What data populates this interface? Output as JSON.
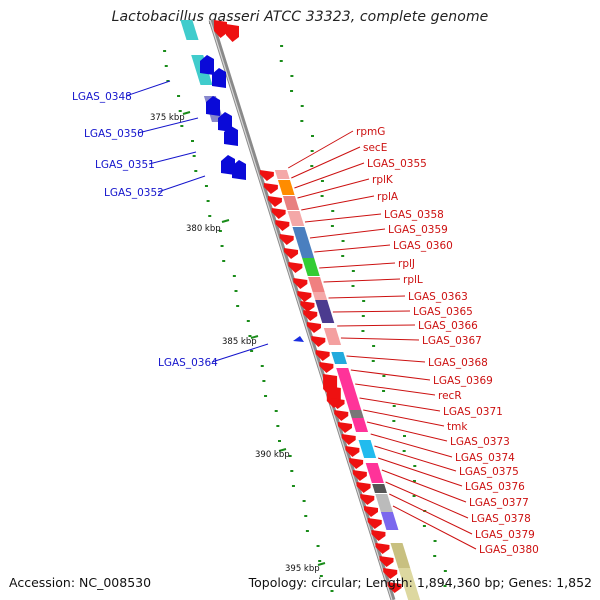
{
  "title": "Lactobacillus gasseri ATCC 33323, complete genome",
  "footer": {
    "accession": "Accession: NC_008530",
    "info": "Topology: circular; Length: 1,894,360 bp; Genes: 1,852"
  },
  "scale_labels": [
    "375 kbp",
    "380 kbp",
    "385 kbp",
    "390 kbp",
    "395 kbp"
  ],
  "colors": {
    "forward_label": "#1515cc",
    "reverse_label": "#cc1111",
    "ring": "#8a8a8a",
    "gc_dots": "#1a8c1a"
  },
  "forward_genes": [
    "LGAS_0348",
    "LGAS_0350",
    "LGAS_0351",
    "LGAS_0352",
    "LGAS_0364"
  ],
  "reverse_genes": [
    "rpmG",
    "secE",
    "LGAS_0355",
    "rplK",
    "rplA",
    "LGAS_0358",
    "LGAS_0359",
    "LGAS_0360",
    "rplJ",
    "rplL",
    "LGAS_0363",
    "LGAS_0365",
    "LGAS_0366",
    "LGAS_0367",
    "LGAS_0368",
    "LGAS_0369",
    "recR",
    "LGAS_0371",
    "tmk",
    "LGAS_0373",
    "LGAS_0374",
    "LGAS_0375",
    "LGAS_0376",
    "LGAS_0377",
    "LGAS_0378",
    "LGAS_0379",
    "LGAS_0380"
  ]
}
